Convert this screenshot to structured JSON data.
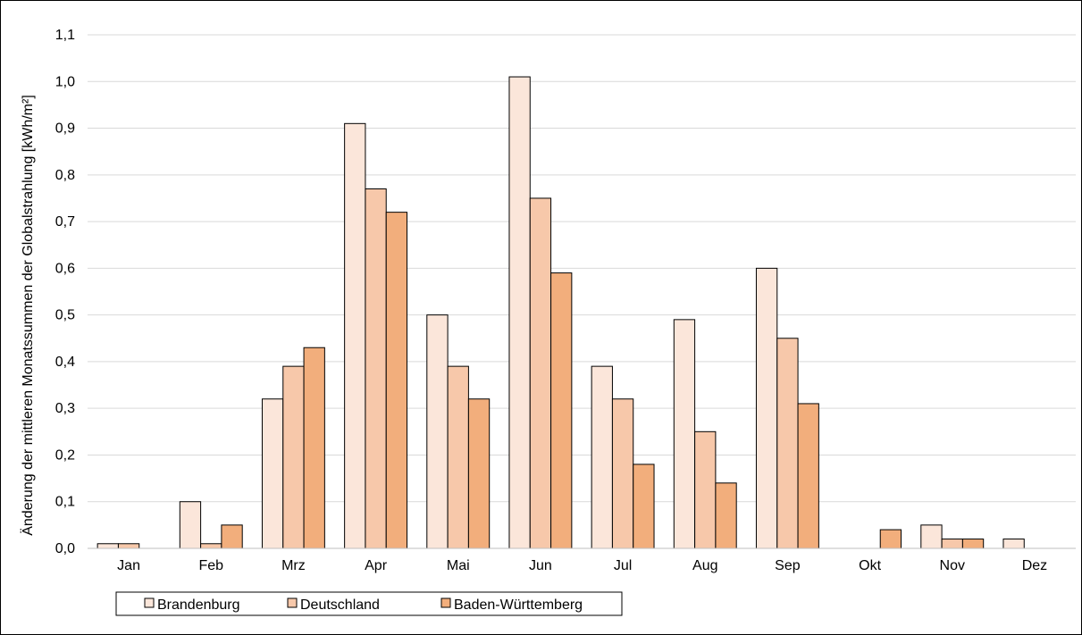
{
  "chart_data": {
    "type": "bar",
    "title": "",
    "xlabel": "",
    "ylabel": "Änderung der mittleren Monatssummen der Globalstrahlung [kWh/m²]",
    "ylim": [
      0,
      1.1
    ],
    "yticks": [
      "0,0",
      "0,1",
      "0,2",
      "0,3",
      "0,4",
      "0,5",
      "0,6",
      "0,7",
      "0,8",
      "0,9",
      "1,0",
      "1,1"
    ],
    "categories": [
      "Jan",
      "Feb",
      "Mrz",
      "Apr",
      "Mai",
      "Jun",
      "Jul",
      "Aug",
      "Sep",
      "Okt",
      "Nov",
      "Dez"
    ],
    "series": [
      {
        "name": "Brandenburg",
        "color": "#fbe6da",
        "values": [
          0.01,
          0.1,
          0.32,
          0.91,
          0.5,
          1.01,
          0.39,
          0.49,
          0.6,
          0.0,
          0.05,
          0.02
        ]
      },
      {
        "name": "Deutschland",
        "color": "#f7c8aa",
        "values": [
          0.01,
          0.01,
          0.39,
          0.77,
          0.39,
          0.75,
          0.32,
          0.25,
          0.45,
          0.0,
          0.02,
          0.0
        ]
      },
      {
        "name": "Baden-Württemberg",
        "color": "#f2ae7c",
        "values": [
          0.0,
          0.05,
          0.43,
          0.72,
          0.32,
          0.59,
          0.18,
          0.14,
          0.31,
          0.04,
          0.02,
          0.0
        ]
      }
    ],
    "grid": true,
    "legend_position": "bottom-left"
  }
}
